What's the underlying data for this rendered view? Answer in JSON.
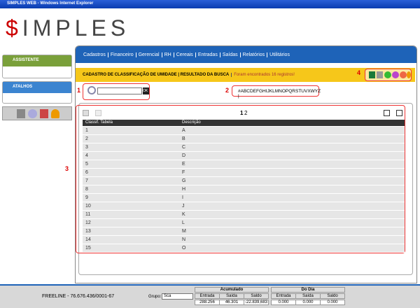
{
  "window": {
    "title": "SIMPLES WEB - Windows Internet Explorer"
  },
  "logo": {
    "symbol": "$",
    "text": "IMPLES"
  },
  "sidebar": {
    "assistant": "ASSISTENTE",
    "shortcuts": "ATALHOS"
  },
  "menu": [
    "Cadastros",
    "Financeiro",
    "Gerencial",
    "RH",
    "Cereais",
    "Entradas",
    "Saídas",
    "Relatórios",
    "Utilitários"
  ],
  "header": {
    "breadcrumb": "CADASTRO DE CLASSIFICAÇÃO DE UMIDADE | RESULTADO DA BUSCA",
    "message": "Foram encontrados 16 registros!"
  },
  "search": {
    "button": "OK",
    "alphabet": "#ABCDEFGHIJKLMNOPQRSTUVXWYZ |"
  },
  "annotations": [
    "1",
    "2",
    "3",
    "4"
  ],
  "pagination": {
    "current": "1",
    "next": "2"
  },
  "table": {
    "columns": [
      "Classif. Tabela",
      "Descrição"
    ],
    "rows": [
      [
        "1",
        "A"
      ],
      [
        "2",
        "B"
      ],
      [
        "3",
        "C"
      ],
      [
        "4",
        "D"
      ],
      [
        "5",
        "E"
      ],
      [
        "6",
        "F"
      ],
      [
        "7",
        "G"
      ],
      [
        "8",
        "H"
      ],
      [
        "9",
        "I"
      ],
      [
        "10",
        "J"
      ],
      [
        "11",
        "K"
      ],
      [
        "12",
        "L"
      ],
      [
        "13",
        "M"
      ],
      [
        "14",
        "N"
      ],
      [
        "15",
        "O"
      ]
    ]
  },
  "footer": {
    "company": "FREELINE - 76.676.436/0001-67",
    "group_label": "Grupo:",
    "group_value": "Sca",
    "accumulated": {
      "title": "Acumulado",
      "columns": [
        "Entrada",
        "Saída",
        "Saldo"
      ],
      "values": [
        "288.256",
        "46.301",
        "-22.839,683"
      ]
    },
    "today": {
      "title": "Do Dia",
      "columns": [
        "Entrada",
        "Saída",
        "Saldo"
      ],
      "values": [
        "0.000",
        "0.000",
        "0.000"
      ]
    }
  }
}
